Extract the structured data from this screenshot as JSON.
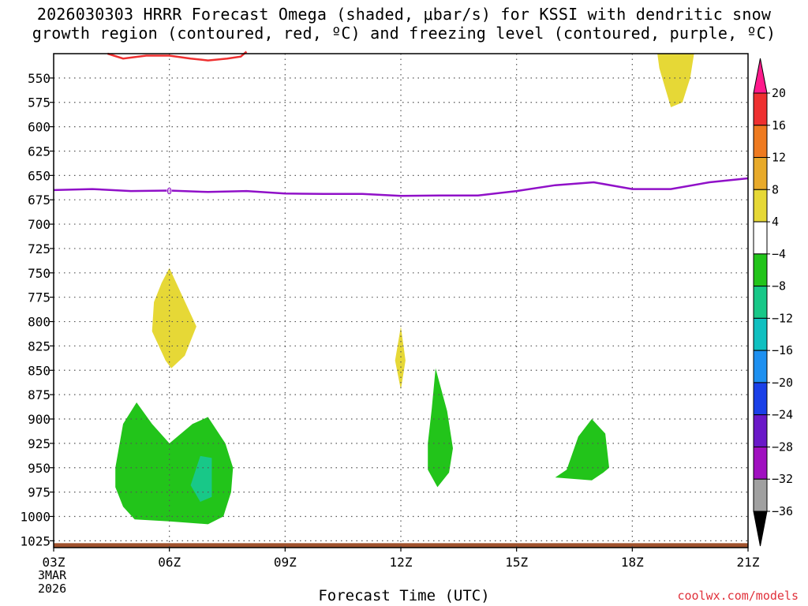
{
  "title": "2026030303 HRRR Forecast Omega (shaded, μbar/s) for KSSI with dendritic snow\ngrowth region (contoured, red, ºC) and freezing level (contoured, purple, ºC)",
  "x_axis_title": "Forecast Time (UTC)",
  "date_label": {
    "line1": "3MAR",
    "line2": "2026"
  },
  "credit": "coolwx.com/models",
  "freezing_level_label": "0",
  "chart_data": {
    "type": "heatmap",
    "x": {
      "hours": [
        3,
        6,
        9,
        12,
        15,
        18,
        21
      ],
      "labels": [
        "03Z",
        "06Z",
        "09Z",
        "12Z",
        "15Z",
        "18Z",
        "21Z"
      ],
      "range": [
        3,
        21
      ]
    },
    "y": {
      "levels": [
        550,
        575,
        600,
        625,
        650,
        675,
        700,
        725,
        750,
        775,
        800,
        825,
        850,
        875,
        900,
        925,
        950,
        975,
        1000,
        1025
      ],
      "range": [
        525,
        1032
      ],
      "inverted": true
    },
    "grid": true,
    "colorbar": {
      "labels": [
        "20",
        "16",
        "12",
        "8",
        "4",
        "−4",
        "−8",
        "−12",
        "−16",
        "−20",
        "−24",
        "−28",
        "−32",
        "−36"
      ],
      "colors": [
        "#ff1a8c",
        "#ee3030",
        "#ee7a20",
        "#e8aa2a",
        "#e6d836",
        "#ffffff",
        "#22c41a",
        "#18c888",
        "#10c0c0",
        "#1e90f0",
        "#1a40e8",
        "#6a18c8",
        "#a010c0",
        "#a0a0a0",
        "#000000"
      ]
    },
    "shaded_regions": [
      {
        "category": "4 to 8",
        "color": "#e6d836",
        "points": [
          [
            6.0,
            745
          ],
          [
            6.35,
            775
          ],
          [
            6.7,
            805
          ],
          [
            6.4,
            835
          ],
          [
            6.05,
            848
          ],
          [
            5.9,
            840
          ],
          [
            5.55,
            810
          ],
          [
            5.6,
            780
          ],
          [
            5.8,
            760
          ]
        ]
      },
      {
        "category": "4 to 8",
        "color": "#e6d836",
        "points": [
          [
            12.0,
            805
          ],
          [
            12.12,
            840
          ],
          [
            12.0,
            870
          ],
          [
            11.85,
            840
          ]
        ]
      },
      {
        "category": "4 to 8",
        "color": "#e6d836",
        "points": [
          [
            18.65,
            525
          ],
          [
            19.6,
            525
          ],
          [
            19.5,
            550
          ],
          [
            19.3,
            575
          ],
          [
            19.0,
            580
          ],
          [
            18.85,
            560
          ],
          [
            18.7,
            540
          ]
        ]
      },
      {
        "category": "-8 to -4",
        "color": "#22c41a",
        "points": [
          [
            4.6,
            950
          ],
          [
            4.8,
            905
          ],
          [
            5.15,
            883
          ],
          [
            5.55,
            905
          ],
          [
            6.0,
            925
          ],
          [
            6.6,
            905
          ],
          [
            7.0,
            898
          ],
          [
            7.45,
            925
          ],
          [
            7.65,
            950
          ],
          [
            7.6,
            975
          ],
          [
            7.4,
            1000
          ],
          [
            7.0,
            1008
          ],
          [
            6.0,
            1005
          ],
          [
            5.1,
            1003
          ],
          [
            4.8,
            990
          ],
          [
            4.6,
            970
          ]
        ]
      },
      {
        "category": "-12 to -8",
        "color": "#18c888",
        "points": [
          [
            6.55,
            968
          ],
          [
            6.8,
            938
          ],
          [
            7.1,
            940
          ],
          [
            7.1,
            980
          ],
          [
            6.8,
            985
          ]
        ]
      },
      {
        "category": "-8 to -4",
        "color": "#22c41a",
        "points": [
          [
            12.9,
            848
          ],
          [
            13.2,
            892
          ],
          [
            13.35,
            930
          ],
          [
            13.25,
            955
          ],
          [
            12.95,
            970
          ],
          [
            12.7,
            952
          ],
          [
            12.7,
            925
          ],
          [
            12.8,
            890
          ]
        ]
      },
      {
        "category": "-8 to -4",
        "color": "#22c41a",
        "points": [
          [
            16.0,
            960
          ],
          [
            16.3,
            952
          ],
          [
            16.6,
            918
          ],
          [
            16.95,
            900
          ],
          [
            17.3,
            915
          ],
          [
            17.4,
            950
          ],
          [
            17.25,
            955
          ],
          [
            16.95,
            963
          ]
        ]
      }
    ],
    "dgz_contour": {
      "color": "#ee3030",
      "points": [
        [
          4.4,
          525
        ],
        [
          4.8,
          530
        ],
        [
          5.4,
          527
        ],
        [
          6.0,
          527
        ],
        [
          6.55,
          530
        ],
        [
          7.0,
          532
        ],
        [
          7.5,
          530
        ],
        [
          7.85,
          528
        ],
        [
          8.0,
          523
        ]
      ]
    },
    "freezing_level": {
      "color": "#9010c8",
      "points": [
        [
          3.0,
          665
        ],
        [
          4.0,
          664
        ],
        [
          5.0,
          666
        ],
        [
          6.0,
          665.5
        ],
        [
          7.0,
          667
        ],
        [
          8.0,
          666
        ],
        [
          9.0,
          668.5
        ],
        [
          10.0,
          669
        ],
        [
          11.0,
          669
        ],
        [
          12.0,
          671
        ],
        [
          13.0,
          670.5
        ],
        [
          14.0,
          670.5
        ],
        [
          15.0,
          666
        ],
        [
          16.0,
          660
        ],
        [
          17.0,
          657
        ],
        [
          18.0,
          664
        ],
        [
          19.0,
          664
        ],
        [
          20.0,
          657
        ],
        [
          21.0,
          653
        ]
      ]
    },
    "terrain": {
      "color": "#a0522d",
      "surface_pressure": 1025
    }
  }
}
